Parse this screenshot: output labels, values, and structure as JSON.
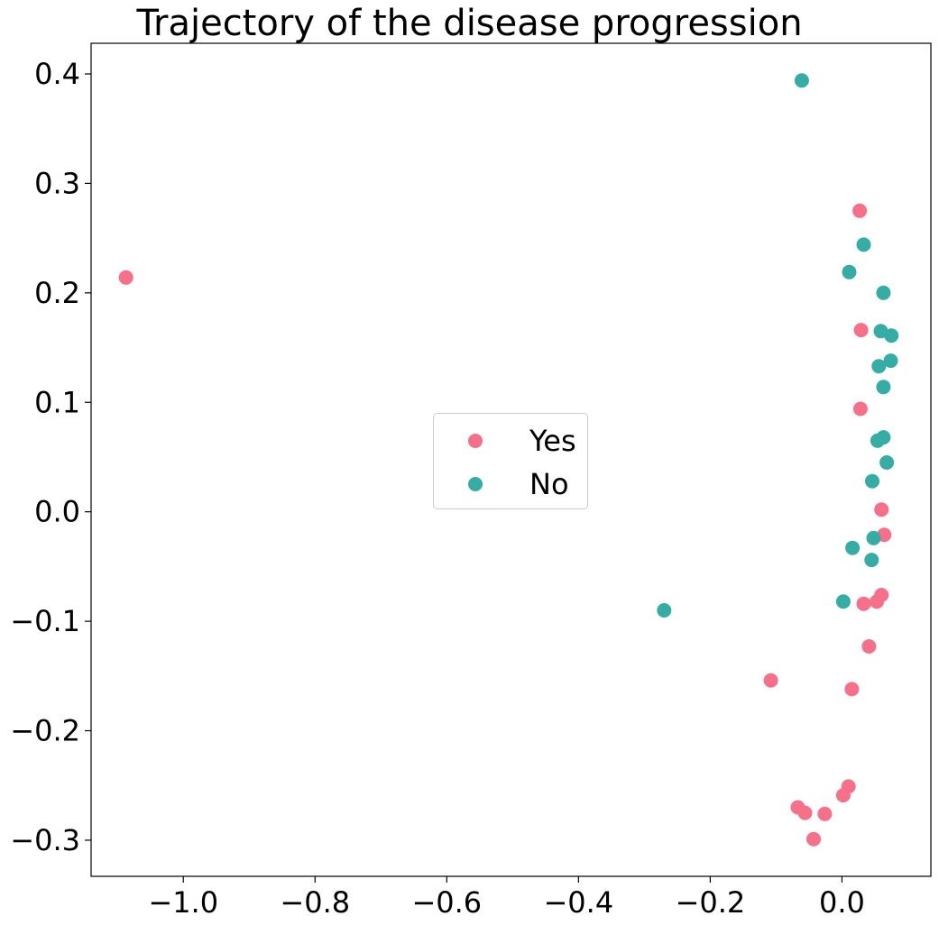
{
  "chart_data": {
    "type": "scatter",
    "title": "Trajectory of the disease progression",
    "xlabel": "",
    "ylabel": "",
    "xlim": [
      -1.14,
      0.135
    ],
    "ylim": [
      -0.333,
      0.428
    ],
    "xticks": [
      -1.0,
      -0.8,
      -0.6,
      -0.4,
      -0.2,
      0.0
    ],
    "xtick_labels": [
      "−1.0",
      "−0.8",
      "−0.6",
      "−0.4",
      "−0.2",
      "0.0"
    ],
    "yticks": [
      -0.3,
      -0.2,
      -0.1,
      0.0,
      0.1,
      0.2,
      0.3,
      0.4
    ],
    "ytick_labels": [
      "−0.3",
      "−0.2",
      "−0.1",
      "0.0",
      "0.1",
      "0.2",
      "0.3",
      "0.4"
    ],
    "grid": false,
    "legend_position": "center",
    "series": [
      {
        "name": "Yes",
        "color": "#f6708a",
        "points": [
          [
            -1.087,
            0.214
          ],
          [
            0.027,
            0.275
          ],
          [
            0.029,
            0.166
          ],
          [
            0.028,
            0.094
          ],
          [
            0.06,
            0.002
          ],
          [
            0.064,
            -0.021
          ],
          [
            0.06,
            -0.076
          ],
          [
            0.053,
            -0.082
          ],
          [
            0.033,
            -0.084
          ],
          [
            0.041,
            -0.123
          ],
          [
            -0.108,
            -0.154
          ],
          [
            0.015,
            -0.162
          ],
          [
            0.01,
            -0.251
          ],
          [
            0.002,
            -0.259
          ],
          [
            -0.067,
            -0.27
          ],
          [
            -0.056,
            -0.275
          ],
          [
            -0.026,
            -0.276
          ],
          [
            -0.043,
            -0.299
          ]
        ]
      },
      {
        "name": "No",
        "color": "#36ada4",
        "points": [
          [
            -0.061,
            0.394
          ],
          [
            0.033,
            0.244
          ],
          [
            0.011,
            0.219
          ],
          [
            0.063,
            0.2
          ],
          [
            0.059,
            0.165
          ],
          [
            0.075,
            0.161
          ],
          [
            0.074,
            0.138
          ],
          [
            0.056,
            0.133
          ],
          [
            0.063,
            0.114
          ],
          [
            0.063,
            0.068
          ],
          [
            0.054,
            0.065
          ],
          [
            0.068,
            0.045
          ],
          [
            0.046,
            0.028
          ],
          [
            0.048,
            -0.024
          ],
          [
            0.016,
            -0.033
          ],
          [
            0.045,
            -0.044
          ],
          [
            0.002,
            -0.082
          ],
          [
            -0.27,
            -0.09
          ]
        ]
      }
    ]
  }
}
